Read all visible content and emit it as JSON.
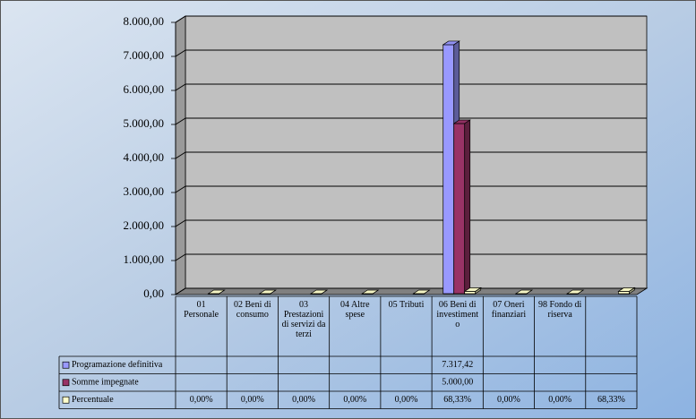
{
  "chart_data": {
    "type": "bar3d",
    "categories": [
      "01 Personale",
      "02 Beni di consumo",
      "03 Prestazioni di servizi da terzi",
      "04 Altre spese",
      "05 Tributi",
      "06 Beni di investimento",
      "07 Oneri finanziari",
      "98 Fondo di riserva",
      null
    ],
    "series": [
      {
        "name": "Programazione definitiva",
        "color": "#9999ff",
        "values": [
          null,
          null,
          null,
          null,
          null,
          7317.42,
          null,
          null,
          null
        ],
        "value_labels": [
          null,
          null,
          null,
          null,
          null,
          "7.317,42",
          null,
          null,
          null
        ]
      },
      {
        "name": "Somme impegnate",
        "color": "#993366",
        "values": [
          null,
          null,
          null,
          null,
          null,
          5000,
          null,
          null,
          null
        ],
        "value_labels": [
          null,
          null,
          null,
          null,
          null,
          "5.000,00",
          null,
          null,
          null
        ]
      },
      {
        "name": "Percentuale",
        "color": "#ffffcc",
        "values": [
          0,
          0,
          0,
          0,
          0,
          68.33,
          0,
          0,
          68.33
        ],
        "value_labels": [
          "0,00%",
          "0,00%",
          "0,00%",
          "0,00%",
          "0,00%",
          "68,33%",
          "0,00%",
          "0,00%",
          "68,33%"
        ]
      }
    ],
    "ylim": [
      0,
      8000
    ],
    "yticks": [
      {
        "value": 0,
        "label": "0,00"
      },
      {
        "value": 1000,
        "label": "1.000,00"
      },
      {
        "value": 2000,
        "label": "2.000,00"
      },
      {
        "value": 3000,
        "label": "3.000,00"
      },
      {
        "value": 4000,
        "label": "4.000,00"
      },
      {
        "value": 5000,
        "label": "5.000,00"
      },
      {
        "value": 6000,
        "label": "6.000,00"
      },
      {
        "value": 7000,
        "label": "7.000,00"
      },
      {
        "value": 8000,
        "label": "8.000,00"
      }
    ],
    "grid": true
  }
}
